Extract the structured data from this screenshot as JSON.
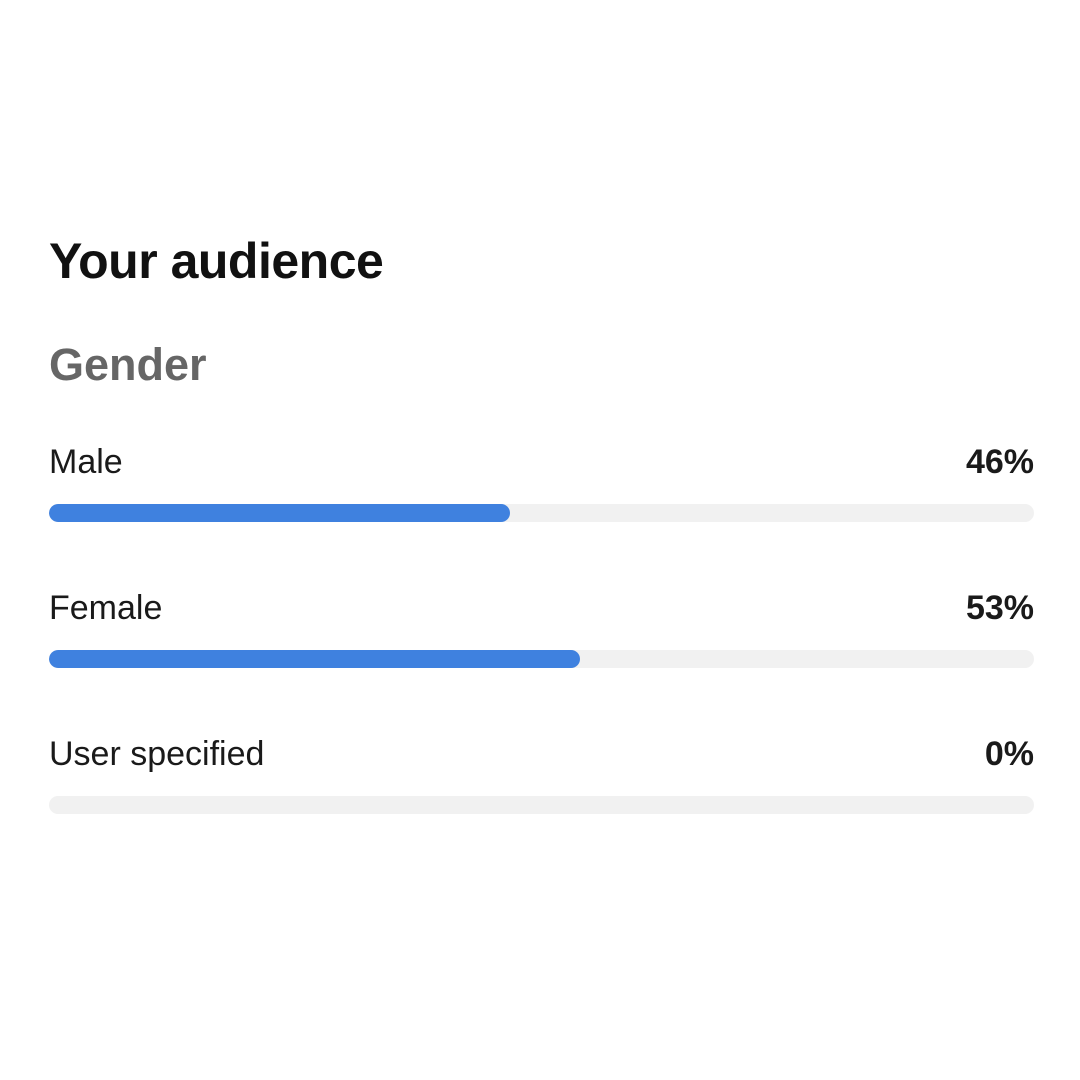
{
  "header": {
    "title": "Your audience"
  },
  "section": {
    "title": "Gender"
  },
  "colors": {
    "bar_fill": "#3f81df",
    "bar_track": "#f1f1f1",
    "subtitle": "#666666"
  },
  "gender": {
    "rows": [
      {
        "label": "Male",
        "value_text": "46%",
        "value": 46
      },
      {
        "label": "Female",
        "value_text": "53%",
        "value": 53
      },
      {
        "label": "User specified",
        "value_text": "0%",
        "value": 0
      }
    ]
  }
}
